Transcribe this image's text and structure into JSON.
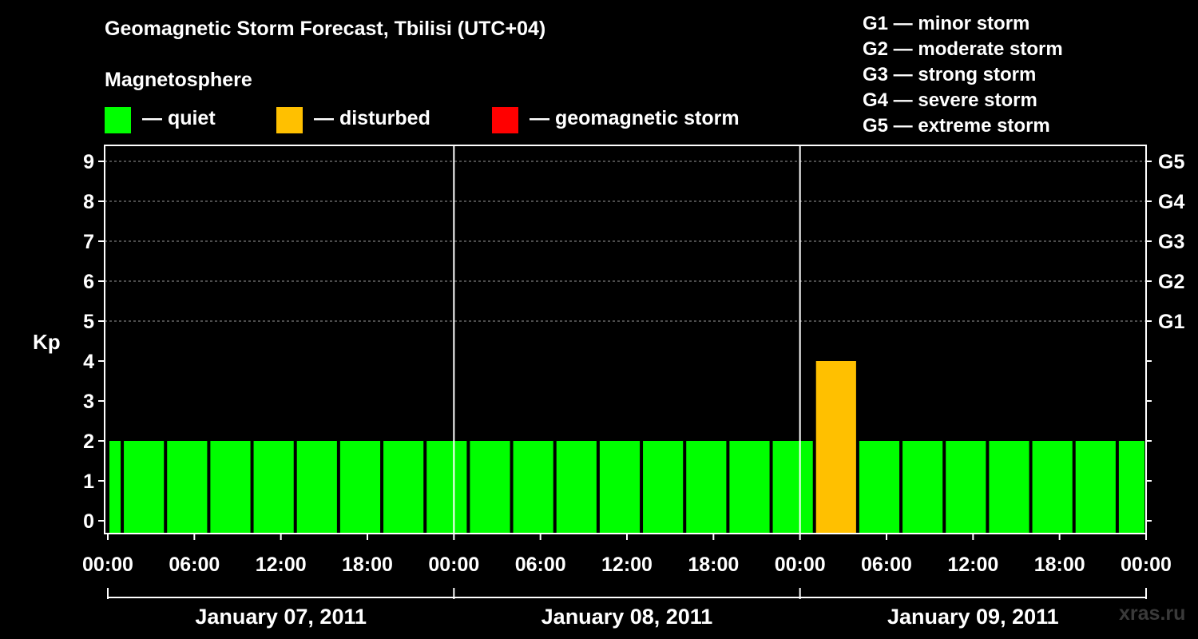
{
  "title": "Geomagnetic Storm Forecast, Tbilisi (UTC+04)",
  "subtitle": "Magnetosphere",
  "legend": [
    {
      "label": "— quiet",
      "color": "#00ff00"
    },
    {
      "label": "— disturbed",
      "color": "#ffc000"
    },
    {
      "label": "— geomagnetic storm",
      "color": "#ff0000"
    }
  ],
  "storm_levels": [
    "G1 — minor storm",
    "G2 — moderate storm",
    "G3 — strong storm",
    "G4 — severe storm",
    "G5 — extreme storm"
  ],
  "watermark": "xras.ru",
  "chart_data": {
    "type": "bar",
    "title": "Geomagnetic Storm Forecast, Tbilisi (UTC+04)",
    "ylabel": "Kp",
    "ylim": [
      0,
      9
    ],
    "y_ticks": [
      "0",
      "1",
      "2",
      "3",
      "4",
      "5",
      "6",
      "7",
      "8",
      "9"
    ],
    "right_ticks": [
      {
        "kp": 5,
        "label": "G1"
      },
      {
        "kp": 6,
        "label": "G2"
      },
      {
        "kp": 7,
        "label": "G3"
      },
      {
        "kp": 8,
        "label": "G4"
      },
      {
        "kp": 9,
        "label": "G5"
      }
    ],
    "x_ticks": [
      "00:00",
      "06:00",
      "12:00",
      "18:00",
      "00:00",
      "06:00",
      "12:00",
      "18:00",
      "00:00",
      "06:00",
      "12:00",
      "18:00",
      "00:00"
    ],
    "days": [
      "January 07, 2011",
      "January 08, 2011",
      "January 09, 2011"
    ],
    "grid": true,
    "hours_span": 72,
    "intervals": [
      {
        "start": 0,
        "end": 1,
        "kp": 2,
        "status": "quiet"
      },
      {
        "start": 1,
        "end": 4,
        "kp": 2,
        "status": "quiet"
      },
      {
        "start": 4,
        "end": 7,
        "kp": 2,
        "status": "quiet"
      },
      {
        "start": 7,
        "end": 10,
        "kp": 2,
        "status": "quiet"
      },
      {
        "start": 10,
        "end": 13,
        "kp": 2,
        "status": "quiet"
      },
      {
        "start": 13,
        "end": 16,
        "kp": 2,
        "status": "quiet"
      },
      {
        "start": 16,
        "end": 19,
        "kp": 2,
        "status": "quiet"
      },
      {
        "start": 19,
        "end": 22,
        "kp": 2,
        "status": "quiet"
      },
      {
        "start": 22,
        "end": 25,
        "kp": 2,
        "status": "quiet"
      },
      {
        "start": 25,
        "end": 28,
        "kp": 2,
        "status": "quiet"
      },
      {
        "start": 28,
        "end": 31,
        "kp": 2,
        "status": "quiet"
      },
      {
        "start": 31,
        "end": 34,
        "kp": 2,
        "status": "quiet"
      },
      {
        "start": 34,
        "end": 37,
        "kp": 2,
        "status": "quiet"
      },
      {
        "start": 37,
        "end": 40,
        "kp": 2,
        "status": "quiet"
      },
      {
        "start": 40,
        "end": 43,
        "kp": 2,
        "status": "quiet"
      },
      {
        "start": 43,
        "end": 46,
        "kp": 2,
        "status": "quiet"
      },
      {
        "start": 46,
        "end": 49,
        "kp": 2,
        "status": "quiet"
      },
      {
        "start": 49,
        "end": 52,
        "kp": 4,
        "status": "disturbed"
      },
      {
        "start": 52,
        "end": 55,
        "kp": 2,
        "status": "quiet"
      },
      {
        "start": 55,
        "end": 58,
        "kp": 2,
        "status": "quiet"
      },
      {
        "start": 58,
        "end": 61,
        "kp": 2,
        "status": "quiet"
      },
      {
        "start": 61,
        "end": 64,
        "kp": 2,
        "status": "quiet"
      },
      {
        "start": 64,
        "end": 67,
        "kp": 2,
        "status": "quiet"
      },
      {
        "start": 67,
        "end": 70,
        "kp": 2,
        "status": "quiet"
      },
      {
        "start": 70,
        "end": 72,
        "kp": 2,
        "status": "quiet"
      }
    ],
    "status_colors": {
      "quiet": "#00ff00",
      "disturbed": "#ffc000",
      "storm": "#ff0000"
    }
  }
}
